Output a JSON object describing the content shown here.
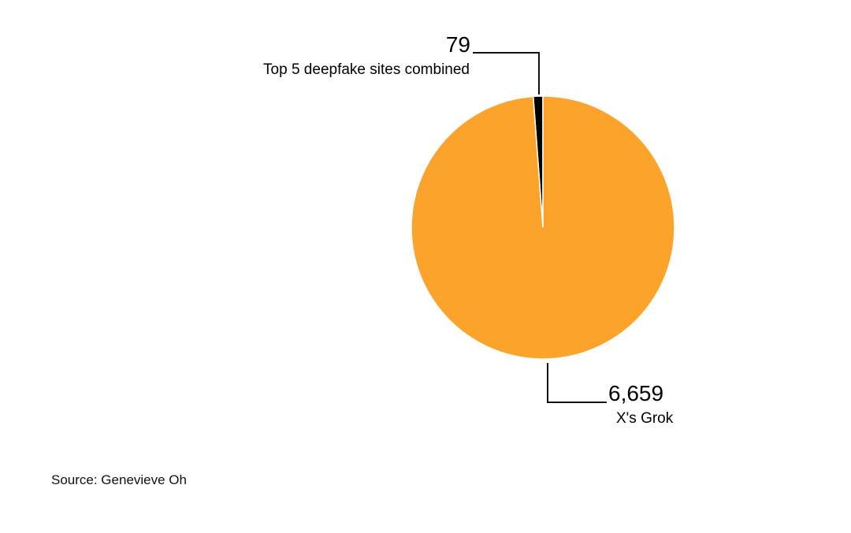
{
  "chart_data": {
    "type": "pie",
    "slices": [
      {
        "label": "Top 5 deepfake sites combined",
        "value": 79,
        "value_label": "79",
        "color": "#000000"
      },
      {
        "label": "X's Grok",
        "value": 6659,
        "value_label": "6,659",
        "color": "#FBA32A"
      }
    ],
    "start": "top",
    "legend": "none"
  },
  "source": "Source: Genevieve Oh"
}
